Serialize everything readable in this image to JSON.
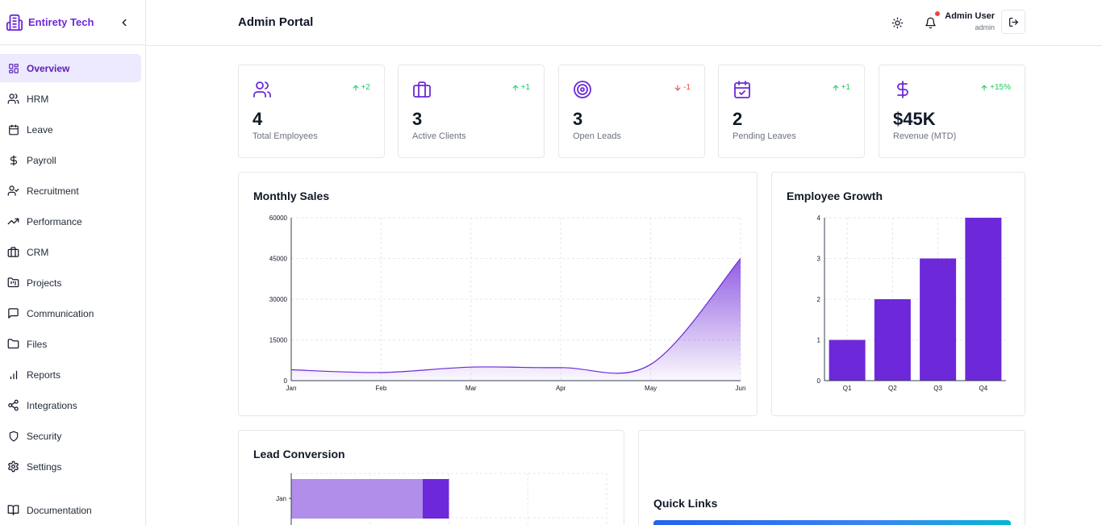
{
  "brand": {
    "name": "Entirety Tech"
  },
  "sidebar": {
    "items": [
      {
        "label": "Overview",
        "icon": "grid-icon",
        "active": true
      },
      {
        "label": "HRM",
        "icon": "users-icon"
      },
      {
        "label": "Leave",
        "icon": "calendar-icon"
      },
      {
        "label": "Payroll",
        "icon": "dollar-icon"
      },
      {
        "label": "Recruitment",
        "icon": "user-check-icon"
      },
      {
        "label": "Performance",
        "icon": "trending-up-icon"
      },
      {
        "label": "CRM",
        "icon": "briefcase-icon"
      },
      {
        "label": "Projects",
        "icon": "folder-kanban-icon"
      },
      {
        "label": "Communication",
        "icon": "message-square-icon"
      },
      {
        "label": "Files",
        "icon": "folder-icon"
      },
      {
        "label": "Reports",
        "icon": "bar-chart-icon"
      },
      {
        "label": "Integrations",
        "icon": "share-icon"
      },
      {
        "label": "Security",
        "icon": "shield-icon"
      },
      {
        "label": "Settings",
        "icon": "gear-icon"
      }
    ],
    "documentation": {
      "label": "Documentation",
      "icon": "book-open-icon"
    }
  },
  "header": {
    "title": "Admin Portal",
    "user_name": "Admin User",
    "user_role": "admin"
  },
  "stats": [
    {
      "value": "4",
      "label": "Total Employees",
      "trend": "+2",
      "direction": "up",
      "icon": "users-icon"
    },
    {
      "value": "3",
      "label": "Active Clients",
      "trend": "+1",
      "direction": "up",
      "icon": "briefcase-icon"
    },
    {
      "value": "3",
      "label": "Open Leads",
      "trend": "-1",
      "direction": "down",
      "icon": "target-icon"
    },
    {
      "value": "2",
      "label": "Pending Leaves",
      "trend": "+1",
      "direction": "up",
      "icon": "calendar-check-icon"
    },
    {
      "value": "$45K",
      "label": "Revenue (MTD)",
      "trend": "+15%",
      "direction": "up",
      "icon": "dollar-icon"
    }
  ],
  "colors": {
    "accent": "#6d28d9",
    "accent_light": "#ede9fe",
    "up": "#22c55e",
    "down": "#ef4444",
    "bar": "#6d28d9"
  },
  "panels": {
    "monthly_sales": "Monthly Sales",
    "employee_growth": "Employee Growth",
    "lead_conversion": "Lead Conversion",
    "quick_links": "Quick Links"
  },
  "chart_data": [
    {
      "type": "area",
      "title": "Monthly Sales",
      "categories": [
        "Jan",
        "Feb",
        "Mar",
        "Apr",
        "May",
        "Jun"
      ],
      "values": [
        4000,
        3000,
        5000,
        4800,
        6000,
        45000
      ],
      "ylim": [
        0,
        60000
      ],
      "yticks": [
        0,
        15000,
        30000,
        45000,
        60000
      ],
      "grid": true
    },
    {
      "type": "bar",
      "title": "Employee Growth",
      "categories": [
        "Q1",
        "Q2",
        "Q3",
        "Q4"
      ],
      "values": [
        1,
        2,
        3,
        4
      ],
      "ylim": [
        0,
        4
      ],
      "yticks": [
        0,
        1,
        2,
        3,
        4
      ],
      "grid": true
    },
    {
      "type": "bar",
      "title": "Lead Conversion",
      "orientation": "horizontal",
      "categories": [
        "Jan"
      ],
      "series": [
        {
          "values": [
            5
          ]
        },
        {
          "values": [
            1
          ]
        }
      ],
      "grid": true
    }
  ]
}
